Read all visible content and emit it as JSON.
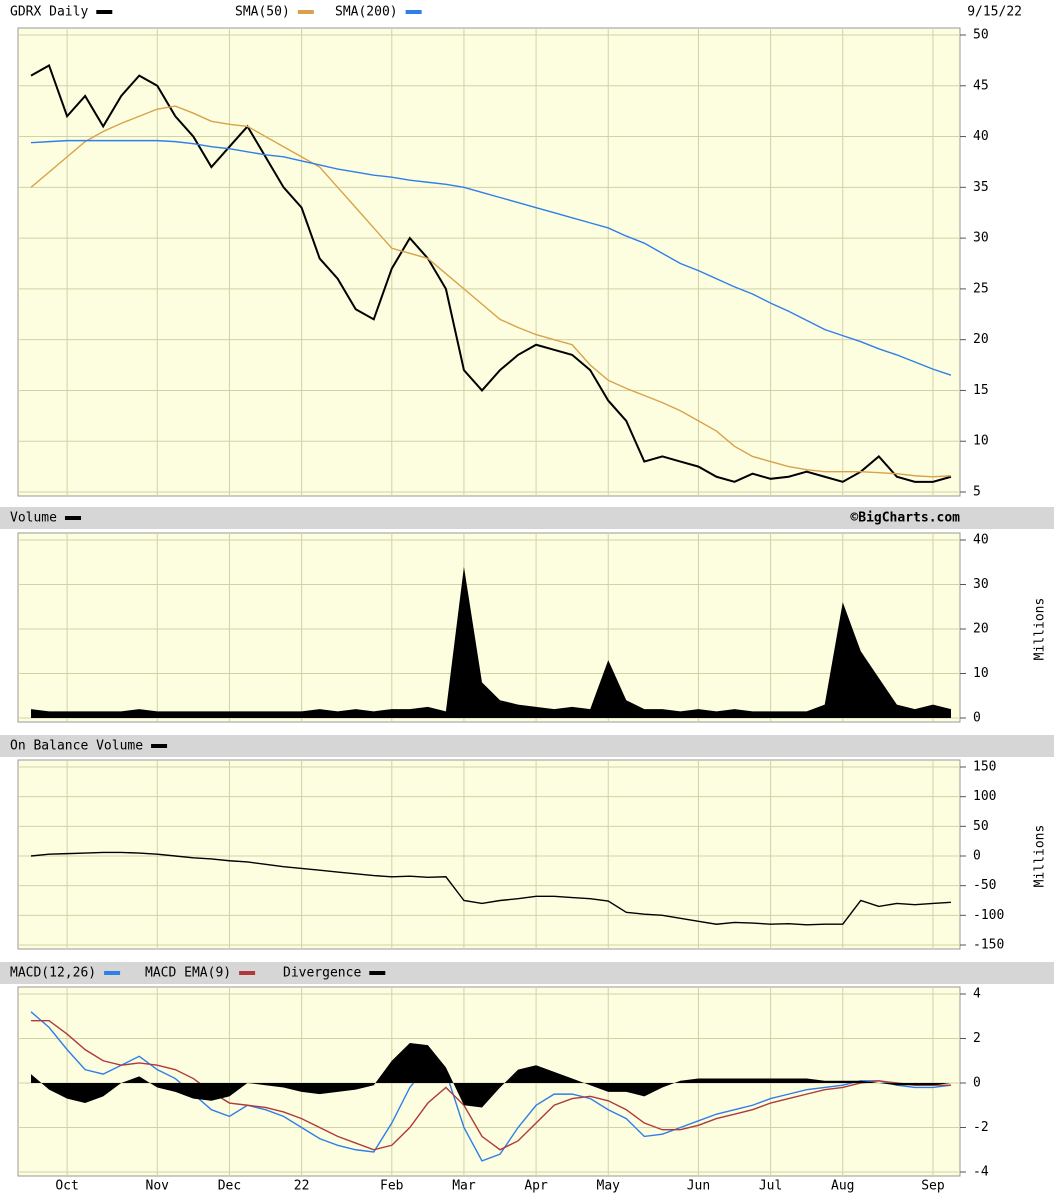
{
  "chart_data": [
    {
      "type": "line",
      "date": "9/15/22",
      "ylim": [
        5,
        50
      ],
      "yticks": [
        5,
        10,
        15,
        20,
        25,
        30,
        35,
        40,
        45,
        50
      ],
      "grid": true,
      "series": [
        {
          "name": "GDRX Daily",
          "color": "#000000",
          "values": [
            46,
            47,
            42,
            44,
            41,
            44,
            46,
            45,
            42,
            40,
            37,
            39,
            41,
            38,
            35,
            33,
            28,
            26,
            23,
            22,
            27,
            30,
            28,
            25,
            17,
            15,
            17,
            18.5,
            19.5,
            19,
            18.5,
            17,
            14,
            12,
            8,
            8.5,
            8,
            7.5,
            6.5,
            6,
            6.8,
            6.3,
            6.5,
            7,
            6.5,
            6,
            7,
            8.5,
            6.5,
            6,
            6,
            6.5
          ]
        },
        {
          "name": "SMA(50)",
          "color": "#d9a24a",
          "values": [
            35,
            36.5,
            38,
            39.5,
            40.5,
            41.3,
            42,
            42.7,
            43,
            42.3,
            41.5,
            41.2,
            41,
            40,
            39,
            38,
            37,
            35,
            33,
            31,
            29,
            28.5,
            28,
            26.5,
            25,
            23.5,
            22,
            21.2,
            20.5,
            20,
            19.5,
            17.5,
            16,
            15.2,
            14.5,
            13.8,
            13,
            12,
            11,
            9.5,
            8.5,
            8,
            7.5,
            7.2,
            7,
            7,
            7,
            6.9,
            6.8,
            6.6,
            6.5,
            6.6
          ]
        },
        {
          "name": "SMA(200)",
          "color": "#2f7fe8",
          "values": [
            39.4,
            39.5,
            39.6,
            39.6,
            39.6,
            39.6,
            39.6,
            39.6,
            39.5,
            39.3,
            39,
            38.8,
            38.5,
            38.2,
            38,
            37.6,
            37.2,
            36.8,
            36.5,
            36.2,
            36,
            35.7,
            35.5,
            35.3,
            35,
            34.5,
            34,
            33.5,
            33,
            32.5,
            32,
            31.5,
            31,
            30.2,
            29.5,
            28.5,
            27.5,
            26.8,
            26,
            25.2,
            24.5,
            23.6,
            22.8,
            21.9,
            21,
            20.4,
            19.8,
            19.1,
            18.5,
            17.8,
            17.1,
            16.5
          ]
        }
      ]
    },
    {
      "type": "area",
      "credit": "©BigCharts.com",
      "y_label": "Millions",
      "ylim": [
        0,
        40
      ],
      "yticks": [
        0,
        10,
        20,
        30,
        40
      ],
      "grid": true,
      "series": [
        {
          "name": "Volume",
          "color": "#000000",
          "values": [
            2,
            1.5,
            1.5,
            1.5,
            1.5,
            1.5,
            2,
            1.5,
            1.5,
            1.5,
            1.5,
            1.5,
            1.5,
            1.5,
            1.5,
            1.5,
            2,
            1.5,
            2,
            1.5,
            2,
            2,
            2.5,
            1.5,
            34,
            8,
            4,
            3,
            2.5,
            2,
            2.5,
            2,
            13,
            4,
            2,
            2,
            1.5,
            2,
            1.5,
            2,
            1.5,
            1.5,
            1.5,
            1.5,
            3,
            26,
            15,
            9,
            3,
            2,
            3,
            2
          ]
        }
      ]
    },
    {
      "type": "line",
      "y_label": "Millions",
      "ylim": [
        -150,
        150
      ],
      "yticks": [
        -150,
        -100,
        -50,
        0,
        50,
        100,
        150
      ],
      "grid": true,
      "series": [
        {
          "name": "On Balance Volume",
          "color": "#000000",
          "values": [
            0,
            3,
            4,
            5,
            6,
            6,
            5,
            3,
            0,
            -3,
            -5,
            -8,
            -10,
            -14,
            -18,
            -21,
            -24,
            -27,
            -30,
            -33,
            -35,
            -34,
            -36,
            -35,
            -75,
            -80,
            -75,
            -72,
            -68,
            -68,
            -70,
            -72,
            -76,
            -95,
            -98,
            -100,
            -105,
            -110,
            -115,
            -112,
            -113,
            -115,
            -114,
            -116,
            -115,
            -115,
            -75,
            -85,
            -80,
            -82,
            -80,
            -78
          ]
        }
      ]
    },
    {
      "type": "line",
      "ylim": [
        -4,
        4
      ],
      "yticks": [
        -4,
        -2,
        0,
        2,
        4
      ],
      "grid": true,
      "categories": [
        null,
        null,
        "Oct",
        null,
        null,
        null,
        null,
        "Nov",
        null,
        null,
        null,
        "Dec",
        null,
        null,
        null,
        "22",
        null,
        null,
        null,
        null,
        "Feb",
        null,
        null,
        null,
        "Mar",
        null,
        null,
        null,
        "Apr",
        null,
        null,
        null,
        "May",
        null,
        null,
        null,
        null,
        "Jun",
        null,
        null,
        null,
        "Jul",
        null,
        null,
        null,
        "Aug",
        null,
        null,
        null,
        null,
        "Sep",
        null
      ],
      "series": [
        {
          "name": "MACD(12,26)",
          "color": "#2f7fe8",
          "values": [
            3.2,
            2.5,
            1.5,
            0.6,
            0.4,
            0.8,
            1.2,
            0.6,
            0.2,
            -0.5,
            -1.2,
            -1.5,
            -1,
            -1.2,
            -1.5,
            -2,
            -2.5,
            -2.8,
            -3,
            -3.1,
            -1.8,
            -0.2,
            0.8,
            0.5,
            -2,
            -3.5,
            -3.2,
            -2,
            -1,
            -0.5,
            -0.5,
            -0.7,
            -1.2,
            -1.6,
            -2.4,
            -2.3,
            -2,
            -1.7,
            -1.4,
            -1.2,
            -1,
            -0.7,
            -0.5,
            -0.3,
            -0.2,
            -0.1,
            0.1,
            0.1,
            -0.1,
            -0.2,
            -0.2,
            -0.1
          ]
        },
        {
          "name": "MACD EMA(9)",
          "color": "#b03a3a",
          "values": [
            2.8,
            2.8,
            2.2,
            1.5,
            1,
            0.8,
            0.9,
            0.8,
            0.6,
            0.2,
            -0.4,
            -0.9,
            -1,
            -1.1,
            -1.3,
            -1.6,
            -2,
            -2.4,
            -2.7,
            -3,
            -2.8,
            -2,
            -0.9,
            -0.2,
            -1,
            -2.4,
            -3,
            -2.6,
            -1.8,
            -1,
            -0.7,
            -0.6,
            -0.8,
            -1.2,
            -1.8,
            -2.1,
            -2.1,
            -1.9,
            -1.6,
            -1.4,
            -1.2,
            -0.9,
            -0.7,
            -0.5,
            -0.3,
            -0.2,
            0,
            0.1,
            0,
            -0.1,
            -0.1,
            -0.1
          ]
        },
        {
          "name": "Divergence",
          "type": "area",
          "color": "#000000",
          "values": [
            0.4,
            -0.3,
            -0.7,
            -0.9,
            -0.6,
            0,
            0.3,
            -0.2,
            -0.4,
            -0.7,
            -0.8,
            -0.6,
            0,
            -0.1,
            -0.2,
            -0.4,
            -0.5,
            -0.4,
            -0.3,
            -0.1,
            1,
            1.8,
            1.7,
            0.7,
            -1,
            -1.1,
            -0.2,
            0.6,
            0.8,
            0.5,
            0.2,
            -0.1,
            -0.4,
            -0.4,
            -0.6,
            -0.2,
            0.1,
            0.2,
            0.2,
            0.2,
            0.2,
            0.2,
            0.2,
            0.2,
            0.1,
            0.1,
            0.1,
            0,
            -0.1,
            -0.1,
            -0.1,
            0
          ]
        }
      ]
    }
  ]
}
